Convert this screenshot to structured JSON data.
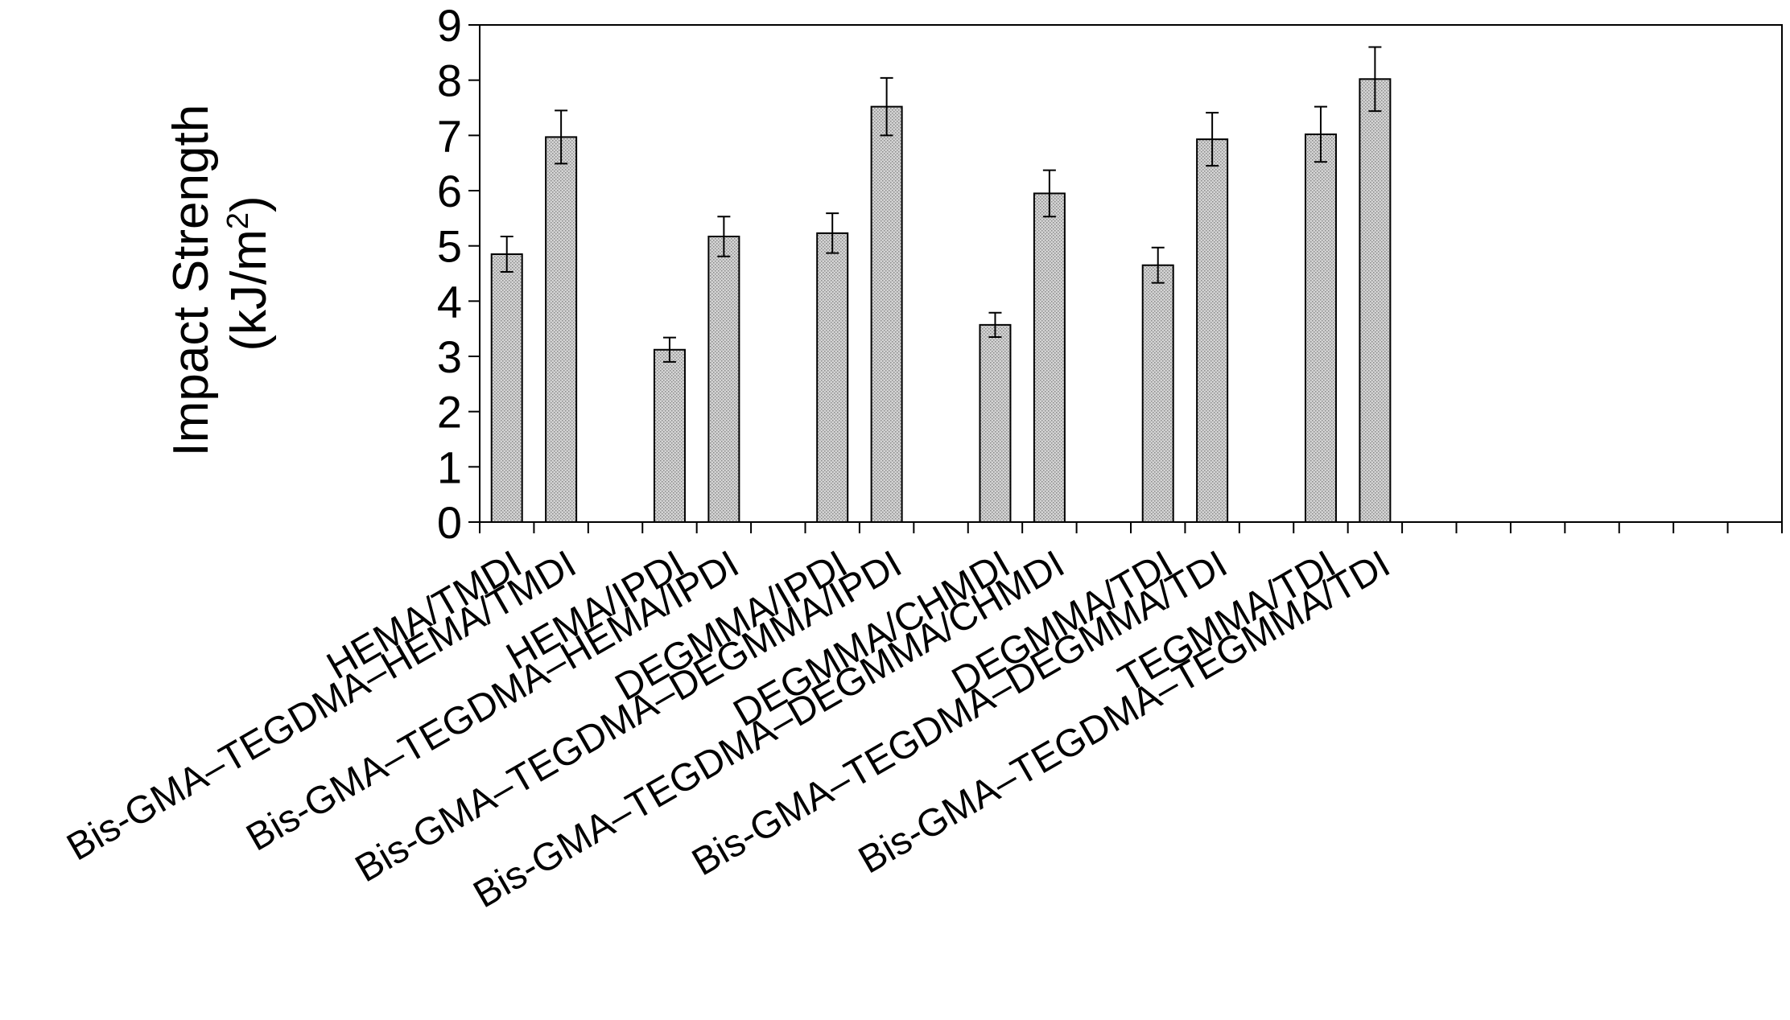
{
  "chart_data": {
    "type": "bar",
    "ylabel_line1": "Impact Strength",
    "ylabel_line2_prefix": "(kJ/m",
    "ylabel_line2_sup": "2",
    "ylabel_line2_suffix": ")",
    "ylim": [
      0,
      9
    ],
    "yticks": [
      "0",
      "1",
      "2",
      "3",
      "4",
      "5",
      "6",
      "7",
      "8",
      "9"
    ],
    "grid": false,
    "bar_fill": "#d4d4d4",
    "bar_stroke": "#000000",
    "categories": [
      "HEMA/TMDI",
      "Bis-GMA–TEGDMA–HEMA/TMDI",
      "HEMA/IPDI",
      "Bis-GMA–TEGDMA–HEMA/IPDI",
      "DEGMMA/IPDI",
      "Bis-GMA–TEGDMA–DEGMMA/IPDI",
      "DEGMMA/CHMDI",
      "Bis-GMA–TEGDMA–DEGMMA/CHMDI",
      "DEGMMA/TDI",
      "Bis-GMA–TEGDMA–DEGMMA/TDI",
      "TEGMMA/TDI",
      "Bis-GMA–TEGDMA–TEGMMA/TDI"
    ],
    "values": [
      4.85,
      6.97,
      3.12,
      5.17,
      5.23,
      7.52,
      3.57,
      5.95,
      4.65,
      6.93,
      7.02,
      8.02
    ],
    "errors": [
      0.32,
      0.48,
      0.22,
      0.36,
      0.36,
      0.52,
      0.22,
      0.42,
      0.32,
      0.48,
      0.5,
      0.58
    ]
  }
}
